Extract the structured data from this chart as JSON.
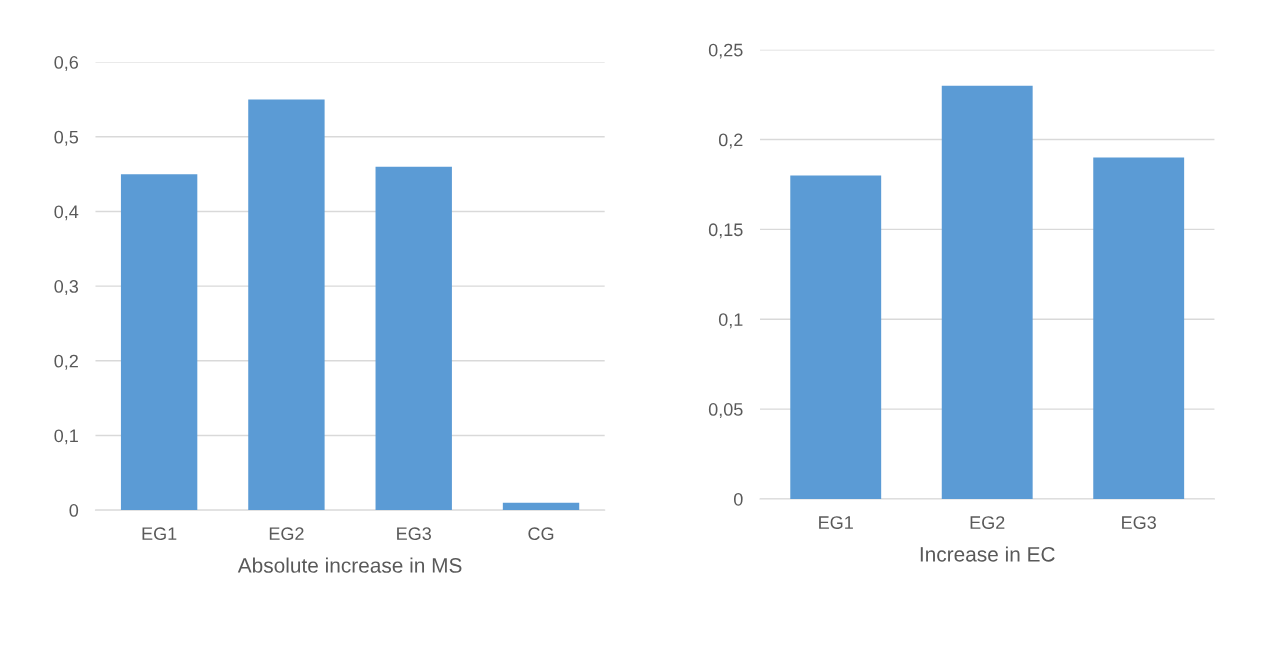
{
  "chart_data": [
    {
      "type": "bar",
      "xlabel": "Absolute increase in MS",
      "categories": [
        "EG1",
        "EG2",
        "EG3",
        "CG"
      ],
      "values": [
        0.45,
        0.55,
        0.46,
        0.01
      ],
      "color": "#5b9bd5",
      "ylim": [
        0,
        0.6
      ],
      "yticks": [
        0,
        {
          "value": 0.1,
          "label": "0,1"
        },
        {
          "value": 0.2,
          "label": "0,2"
        },
        {
          "value": 0.3,
          "label": "0,3"
        },
        {
          "value": 0.4,
          "label": "0,4"
        },
        {
          "value": 0.5,
          "label": "0,5"
        },
        {
          "value": 0.6,
          "label": "0,6"
        }
      ],
      "grid": "y"
    },
    {
      "type": "bar",
      "xlabel": "Increase in EC",
      "categories": [
        "EG1",
        "EG2",
        "EG3"
      ],
      "values": [
        0.18,
        0.23,
        0.19
      ],
      "color": "#5b9bd5",
      "ylim": [
        0,
        0.25
      ],
      "yticks": [
        0,
        {
          "value": 0.05,
          "label": "0,05"
        },
        {
          "value": 0.1,
          "label": "0,1"
        },
        {
          "value": 0.15,
          "label": "0,15"
        },
        {
          "value": 0.2,
          "label": "0,2"
        },
        {
          "value": 0.25,
          "label": "0,25"
        }
      ],
      "grid": "y"
    }
  ]
}
